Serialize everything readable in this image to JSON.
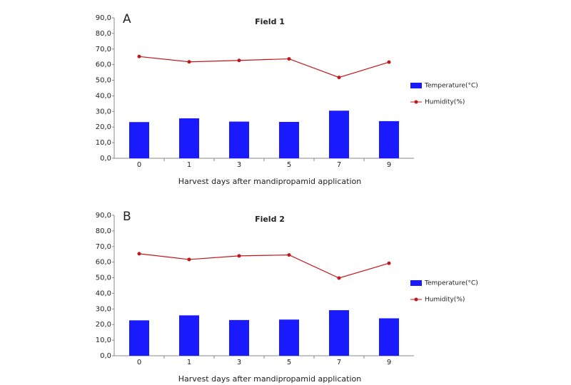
{
  "chart_data": [
    {
      "type": "bar-line",
      "panel": "A",
      "title": "Field 1",
      "x_label": "Harvest days after mandipropamid application",
      "categories": [
        "0",
        "1",
        "3",
        "5",
        "7",
        "9"
      ],
      "series": [
        {
          "name": "Temperature(°C)",
          "type": "bar",
          "color": "#1a1aff",
          "values": [
            23.2,
            25.6,
            23.5,
            23.3,
            30.5,
            23.8
          ]
        },
        {
          "name": "Humidity(%)",
          "type": "line",
          "color": "#c0171b",
          "values": [
            65.2,
            61.8,
            62.7,
            63.7,
            51.8,
            61.6
          ]
        }
      ],
      "ylim": [
        0,
        90
      ],
      "yticks": [
        {
          "value": 0,
          "label": "0,0"
        },
        {
          "value": 10,
          "label": "10,0"
        },
        {
          "value": 20,
          "label": "20,0"
        },
        {
          "value": 30,
          "label": "30,0"
        },
        {
          "value": 40,
          "label": "40,0"
        },
        {
          "value": 50,
          "label": "50,0"
        },
        {
          "value": 60,
          "label": "60,0"
        },
        {
          "value": 70,
          "label": "70,0"
        },
        {
          "value": 80,
          "label": "80,0"
        },
        {
          "value": 90,
          "label": "90,0"
        }
      ]
    },
    {
      "type": "bar-line",
      "panel": "B",
      "title": "Field 2",
      "x_label": "Harvest days after mandipropamid application",
      "categories": [
        "0",
        "1",
        "3",
        "5",
        "7",
        "9"
      ],
      "series": [
        {
          "name": "Temperature(°C)",
          "type": "bar",
          "color": "#1a1aff",
          "values": [
            22.7,
            25.9,
            22.9,
            23.2,
            29.2,
            24.0
          ]
        },
        {
          "name": "Humidity(%)",
          "type": "line",
          "color": "#c0171b",
          "values": [
            65.4,
            61.7,
            64.0,
            64.6,
            49.8,
            59.3
          ]
        }
      ],
      "ylim": [
        0,
        90
      ],
      "yticks": [
        {
          "value": 0,
          "label": "0,0"
        },
        {
          "value": 10,
          "label": "10,0"
        },
        {
          "value": 20,
          "label": "20,0"
        },
        {
          "value": 30,
          "label": "30,0"
        },
        {
          "value": 40,
          "label": "40,0"
        },
        {
          "value": 50,
          "label": "50,0"
        },
        {
          "value": 60,
          "label": "60,0"
        },
        {
          "value": 70,
          "label": "70,0"
        },
        {
          "value": 80,
          "label": "80,0"
        },
        {
          "value": 90,
          "label": "90,0"
        }
      ]
    }
  ]
}
